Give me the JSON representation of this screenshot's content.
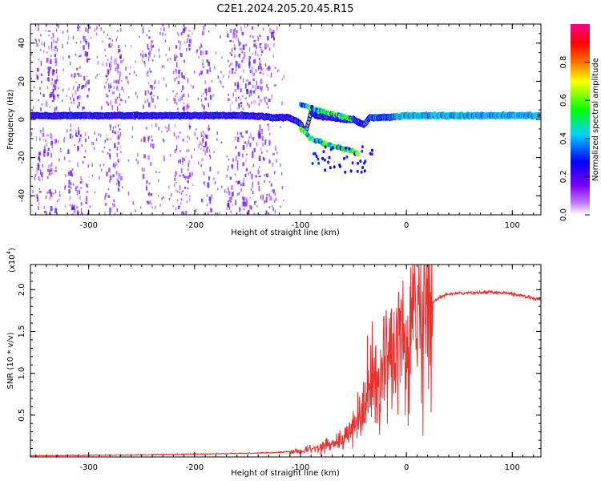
{
  "figure": {
    "title": "C2E1.2024.205.20.45.R15"
  },
  "chart_data": [
    {
      "type": "heatmap",
      "xlabel": "Height of straight line (km)",
      "ylabel": "Frequency (Hz)",
      "xlim": [
        -355,
        127
      ],
      "ylim": [
        -50,
        50
      ],
      "xticks": [
        -300,
        -200,
        -100,
        0,
        100
      ],
      "xtick_labels": [
        "-300",
        "-200",
        "-100",
        "0",
        "100"
      ],
      "yticks": [
        -40,
        -20,
        0,
        20,
        40
      ],
      "ytick_labels": [
        "-40",
        "-20",
        "0",
        "20",
        "40"
      ],
      "colorbar": {
        "label": "Normalized spectral amplitude",
        "range": [
          0,
          1
        ],
        "ticks": [
          0.0,
          0.2,
          0.4,
          0.6,
          0.8
        ],
        "tick_labels": [
          "0.0",
          "0.2",
          "0.4",
          "0.6",
          "0.8"
        ],
        "colormap": [
          "#ffffff",
          "#8000ff",
          "#0000ff",
          "#00d0ff",
          "#00ff00",
          "#ffff00",
          "#ff7000",
          "#ff0000",
          "#ff0080"
        ]
      },
      "traces": [
        {
          "name": "main line",
          "x": [
            -355,
            -300,
            -250,
            -200,
            -150,
            -125,
            -110,
            -100,
            -95,
            -90,
            -85,
            -70,
            -60,
            -50,
            -40,
            -35,
            -20,
            0,
            127
          ],
          "y": [
            2,
            2,
            2,
            2,
            2,
            1,
            1,
            -2,
            -7,
            4,
            2,
            1,
            0,
            0,
            -3,
            1,
            1,
            2,
            2
          ]
        },
        {
          "name": "branch",
          "x": [
            -100,
            -90,
            -80,
            -70,
            -60,
            -50,
            -45
          ],
          "y": [
            -5,
            -10,
            -12,
            -14,
            -15,
            -17,
            -18
          ]
        },
        {
          "name": "upper branch",
          "x": [
            -100,
            -85,
            -70,
            -55,
            -50
          ],
          "y": [
            8,
            5,
            3,
            1,
            0
          ]
        }
      ],
      "grid": false
    },
    {
      "type": "line",
      "xlabel": "Height of straight line (km)",
      "ylabel": "SNR (10 * v/v)",
      "scale_label": "(x10",
      "scale_exponent": "4",
      "xlim": [
        -355,
        127
      ],
      "ylim": [
        0,
        2.3
      ],
      "xticks": [
        -300,
        -200,
        -100,
        0,
        100
      ],
      "xtick_labels": [
        "-300",
        "-200",
        "-100",
        "0",
        "100"
      ],
      "yticks": [
        0.5,
        1.0,
        1.5,
        2.0
      ],
      "ytick_labels": [
        "0.5",
        "1.0",
        "1.5",
        "2.0"
      ],
      "series": [
        {
          "color": "#e8302c",
          "envelope_x": [
            -355,
            -250,
            -200,
            -150,
            -120,
            -100,
            -80,
            -60,
            -50,
            -40,
            -30,
            -20,
            -10,
            0,
            10,
            20,
            30,
            40,
            60,
            80,
            100,
            127
          ],
          "envelope_y": [
            0.01,
            0.02,
            0.03,
            0.04,
            0.05,
            0.07,
            0.12,
            0.2,
            0.35,
            0.6,
            0.9,
            1.1,
            1.3,
            1.45,
            1.65,
            1.78,
            1.9,
            1.95,
            1.96,
            1.97,
            1.95,
            1.88
          ]
        }
      ],
      "grid": false
    }
  ]
}
